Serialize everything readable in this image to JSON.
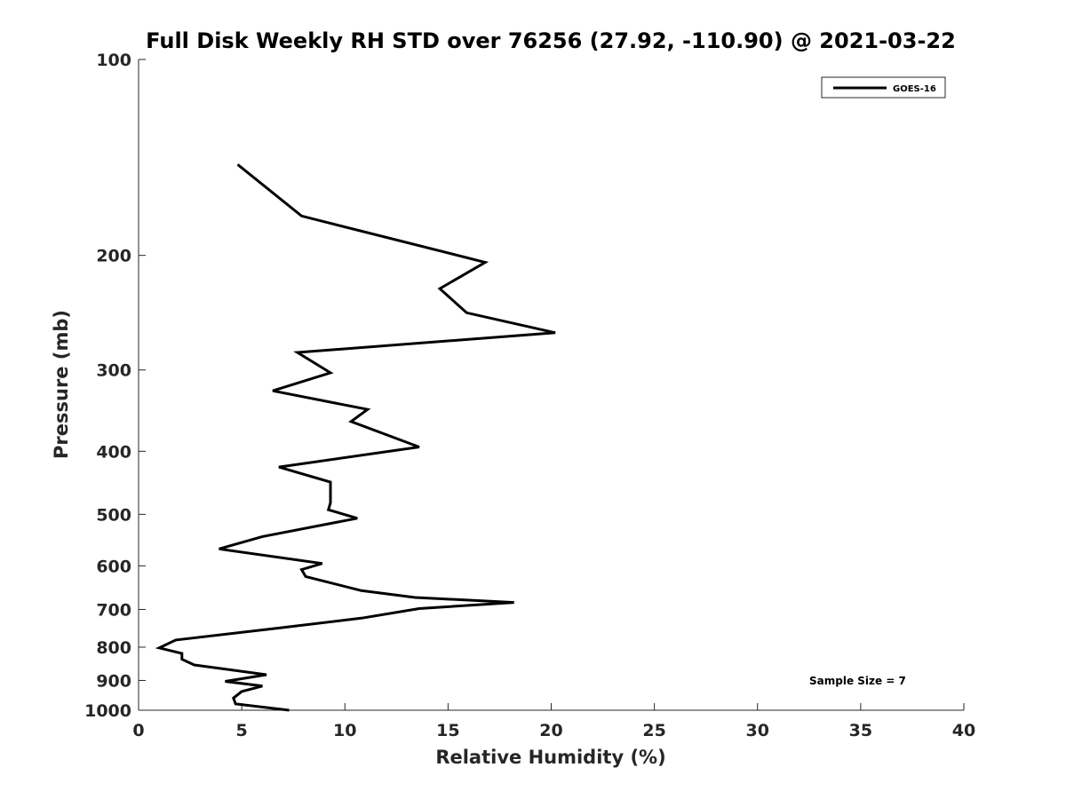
{
  "chart_data": {
    "type": "line",
    "title": "Full Disk Weekly RH STD over 76256 (27.92, -110.90) @ 2021-03-22",
    "xlabel": "Relative Humidity (%)",
    "ylabel": "Pressure (mb)",
    "xlim": [
      0,
      40
    ],
    "ylim": [
      1000,
      100
    ],
    "yscale": "log",
    "xticks": [
      0,
      5,
      10,
      15,
      20,
      25,
      30,
      35,
      40
    ],
    "yticks": [
      100,
      200,
      300,
      400,
      500,
      600,
      700,
      800,
      900,
      1000
    ],
    "grid": false,
    "legend": {
      "position": "top-right",
      "entries": [
        "GOES-16"
      ]
    },
    "annotation": "Sample Size = 7",
    "series": [
      {
        "name": "GOES-16",
        "color": "#000000",
        "x": [
          4.8,
          7.9,
          16.8,
          14.6,
          15.9,
          20.2,
          7.7,
          9.3,
          6.5,
          11.1,
          10.3,
          13.6,
          6.8,
          9.3,
          9.3,
          9.2,
          10.6,
          6.0,
          3.9,
          8.9,
          7.9,
          8.1,
          10.8,
          13.4,
          18.2,
          13.6,
          10.8,
          6.9,
          1.8,
          1.0,
          2.1,
          2.1,
          2.7,
          6.2,
          4.2,
          6.0,
          5.0,
          4.6,
          4.7,
          7.3
        ],
        "y": [
          145,
          174,
          205,
          225,
          245,
          263,
          282,
          303,
          323,
          345,
          360,
          394,
          423,
          446,
          480,
          492,
          507,
          541,
          565,
          595,
          608,
          623,
          655,
          671,
          683,
          698,
          722,
          747,
          780,
          802,
          818,
          835,
          852,
          882,
          903,
          918,
          936,
          958,
          978,
          1000
        ]
      }
    ]
  }
}
